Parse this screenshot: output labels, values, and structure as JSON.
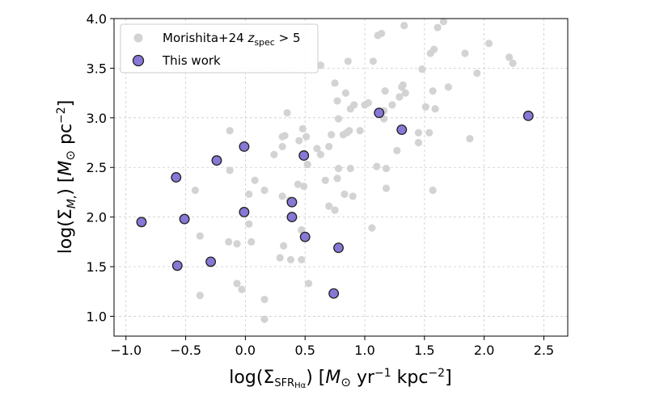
{
  "chart_data": {
    "type": "scatter",
    "xlabel": "log(Σ_SFR,Hα) [M⊙ yr⁻¹ kpc⁻²]",
    "ylabel": "log(Σ_M*) [M⊙ pc⁻²]",
    "xlim": [
      -1.1,
      2.7
    ],
    "ylim": [
      0.8,
      4.0
    ],
    "xticks": [
      -1.0,
      -0.5,
      0.0,
      0.5,
      1.0,
      1.5,
      2.0,
      2.5
    ],
    "xtick_labels": [
      "−1.0",
      "−0.5",
      "0.0",
      "0.5",
      "1.0",
      "1.5",
      "2.0",
      "2.5"
    ],
    "yticks": [
      1.0,
      1.5,
      2.0,
      2.5,
      3.0,
      3.5,
      4.0
    ],
    "ytick_labels": [
      "1.0",
      "1.5",
      "2.0",
      "2.5",
      "3.0",
      "3.5",
      "4.0"
    ],
    "grid": true,
    "legend_position": "top-left",
    "series": [
      {
        "name": "Morishita+24 z_spec > 5",
        "color": "#d3d3d3",
        "edge": "none",
        "points": [
          [
            -0.42,
            2.27
          ],
          [
            -0.38,
            1.81
          ],
          [
            -0.38,
            1.21
          ],
          [
            -0.13,
            2.87
          ],
          [
            -0.13,
            2.47
          ],
          [
            -0.14,
            1.75
          ],
          [
            -0.07,
            1.73
          ],
          [
            -0.07,
            1.33
          ],
          [
            -0.03,
            1.27
          ],
          [
            0.03,
            2.23
          ],
          [
            0.03,
            1.93
          ],
          [
            0.05,
            1.75
          ],
          [
            0.08,
            2.37
          ],
          [
            0.16,
            2.27
          ],
          [
            0.16,
            1.17
          ],
          [
            0.16,
            0.97
          ],
          [
            0.24,
            2.63
          ],
          [
            0.29,
            1.59
          ],
          [
            0.31,
            2.81
          ],
          [
            0.31,
            2.71
          ],
          [
            0.31,
            2.21
          ],
          [
            0.32,
            1.71
          ],
          [
            0.33,
            2.82
          ],
          [
            0.35,
            3.05
          ],
          [
            0.37,
            2.17
          ],
          [
            0.38,
            1.57
          ],
          [
            0.44,
            2.33
          ],
          [
            0.45,
            2.77
          ],
          [
            0.47,
            1.87
          ],
          [
            0.47,
            1.57
          ],
          [
            0.48,
            2.89
          ],
          [
            0.49,
            2.31
          ],
          [
            0.51,
            2.81
          ],
          [
            0.52,
            2.53
          ],
          [
            0.53,
            1.33
          ],
          [
            0.6,
            2.69
          ],
          [
            0.63,
            2.63
          ],
          [
            0.63,
            3.53
          ],
          [
            0.67,
            2.37
          ],
          [
            0.7,
            2.71
          ],
          [
            0.7,
            2.11
          ],
          [
            0.72,
            2.83
          ],
          [
            0.75,
            3.35
          ],
          [
            0.75,
            2.07
          ],
          [
            0.77,
            3.17
          ],
          [
            0.77,
            2.39
          ],
          [
            0.78,
            2.49
          ],
          [
            0.78,
            2.99
          ],
          [
            0.82,
            2.83
          ],
          [
            0.83,
            2.23
          ],
          [
            0.84,
            3.25
          ],
          [
            0.85,
            2.85
          ],
          [
            0.86,
            3.57
          ],
          [
            0.87,
            2.87
          ],
          [
            0.88,
            2.49
          ],
          [
            0.88,
            3.09
          ],
          [
            0.9,
            2.21
          ],
          [
            0.91,
            3.13
          ],
          [
            0.96,
            2.87
          ],
          [
            1.0,
            3.13
          ],
          [
            1.03,
            3.15
          ],
          [
            1.06,
            1.89
          ],
          [
            1.07,
            3.57
          ],
          [
            1.1,
            2.51
          ],
          [
            1.11,
            3.83
          ],
          [
            1.14,
            3.85
          ],
          [
            1.16,
            3.07
          ],
          [
            1.16,
            2.99
          ],
          [
            1.17,
            3.27
          ],
          [
            1.18,
            2.29
          ],
          [
            1.18,
            2.49
          ],
          [
            1.23,
            3.13
          ],
          [
            1.27,
            2.67
          ],
          [
            1.29,
            3.21
          ],
          [
            1.31,
            3.31
          ],
          [
            1.32,
            3.33
          ],
          [
            1.33,
            3.93
          ],
          [
            1.34,
            3.25
          ],
          [
            1.45,
            2.85
          ],
          [
            1.45,
            2.75
          ],
          [
            1.48,
            3.49
          ],
          [
            1.51,
            3.11
          ],
          [
            1.54,
            2.85
          ],
          [
            1.55,
            3.65
          ],
          [
            1.57,
            2.27
          ],
          [
            1.57,
            3.27
          ],
          [
            1.58,
            3.69
          ],
          [
            1.59,
            3.09
          ],
          [
            1.61,
            3.91
          ],
          [
            1.66,
            3.97
          ],
          [
            1.7,
            3.31
          ],
          [
            1.84,
            3.65
          ],
          [
            1.88,
            2.79
          ],
          [
            1.94,
            3.45
          ],
          [
            2.04,
            3.75
          ],
          [
            2.21,
            3.61
          ],
          [
            2.24,
            3.55
          ]
        ]
      },
      {
        "name": "This work",
        "color": "#8977d6",
        "edge": "#222222",
        "points": [
          [
            -0.87,
            1.95
          ],
          [
            -0.58,
            2.4
          ],
          [
            -0.57,
            1.51
          ],
          [
            -0.51,
            1.98
          ],
          [
            -0.29,
            1.55
          ],
          [
            -0.24,
            2.57
          ],
          [
            -0.01,
            2.71
          ],
          [
            -0.01,
            2.05
          ],
          [
            0.39,
            2.15
          ],
          [
            0.39,
            2.0
          ],
          [
            0.49,
            2.62
          ],
          [
            0.5,
            1.8
          ],
          [
            0.74,
            1.23
          ],
          [
            0.78,
            1.69
          ],
          [
            1.12,
            3.05
          ],
          [
            1.31,
            2.88
          ],
          [
            2.37,
            3.02
          ]
        ]
      }
    ]
  }
}
